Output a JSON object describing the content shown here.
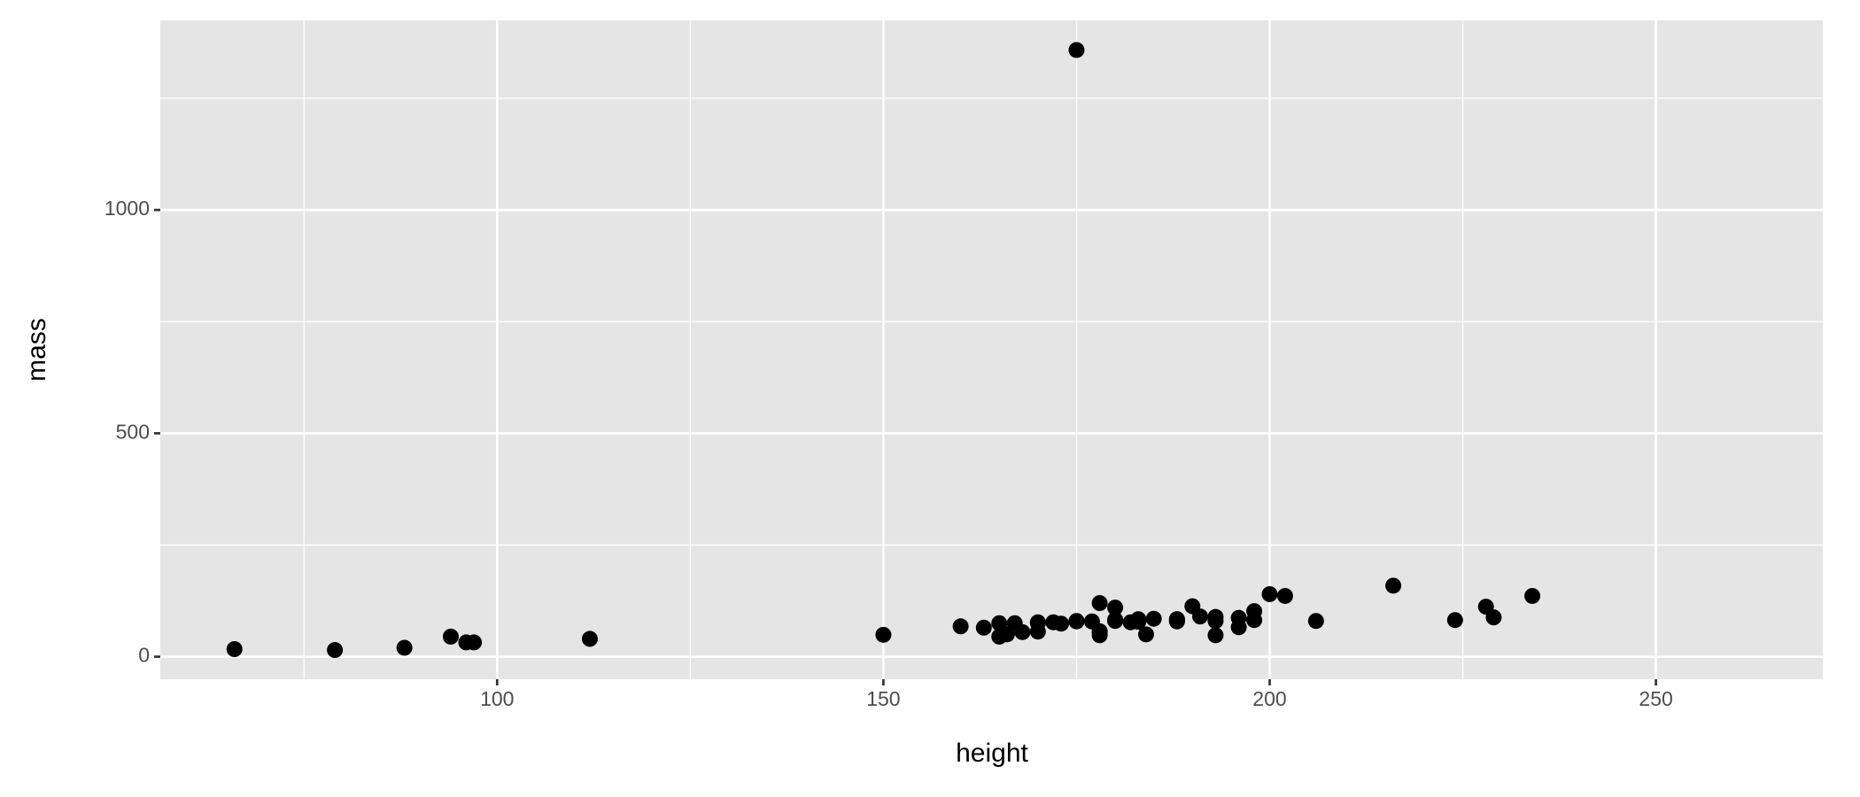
{
  "chart_data": {
    "type": "scatter",
    "x_label": "height",
    "y_label": "mass",
    "x": [
      172,
      167,
      96,
      202,
      150,
      178,
      165,
      97,
      183,
      182,
      188,
      228,
      180,
      173,
      175,
      170,
      180,
      66,
      170,
      183,
      200,
      190,
      177,
      175,
      180,
      88,
      160,
      165,
      196,
      224,
      112,
      175,
      178,
      79,
      94,
      163,
      188,
      198,
      196,
      188,
      185,
      168,
      198,
      183,
      170,
      166,
      183,
      193,
      216,
      193,
      178,
      234,
      188,
      178,
      206,
      229,
      184,
      193,
      191
    ],
    "values": [
      77,
      75,
      32,
      136,
      49,
      120,
      75,
      32,
      84,
      77,
      84,
      112,
      80,
      74,
      1358,
      77,
      110,
      17,
      75,
      78.2,
      140,
      113,
      79,
      79,
      83,
      20,
      68,
      45,
      66,
      82,
      40,
      80,
      55,
      15,
      45,
      65,
      84,
      82,
      87,
      80,
      85,
      55,
      102,
      80,
      56.2,
      50,
      79,
      80,
      159,
      48,
      57,
      136,
      79,
      48,
      80,
      88,
      50,
      89,
      90
    ],
    "color": "#000000",
    "xlim": [
      56.4,
      271.6
    ],
    "ylim": [
      -50.4,
      1424.4
    ],
    "xticks": [
      100,
      150,
      200,
      250
    ],
    "yticks": [
      0,
      500,
      1000
    ],
    "x_minor_ticks": [
      75,
      125,
      175,
      225
    ],
    "y_minor_ticks": [
      250,
      750,
      1250
    ],
    "grid": true
  }
}
